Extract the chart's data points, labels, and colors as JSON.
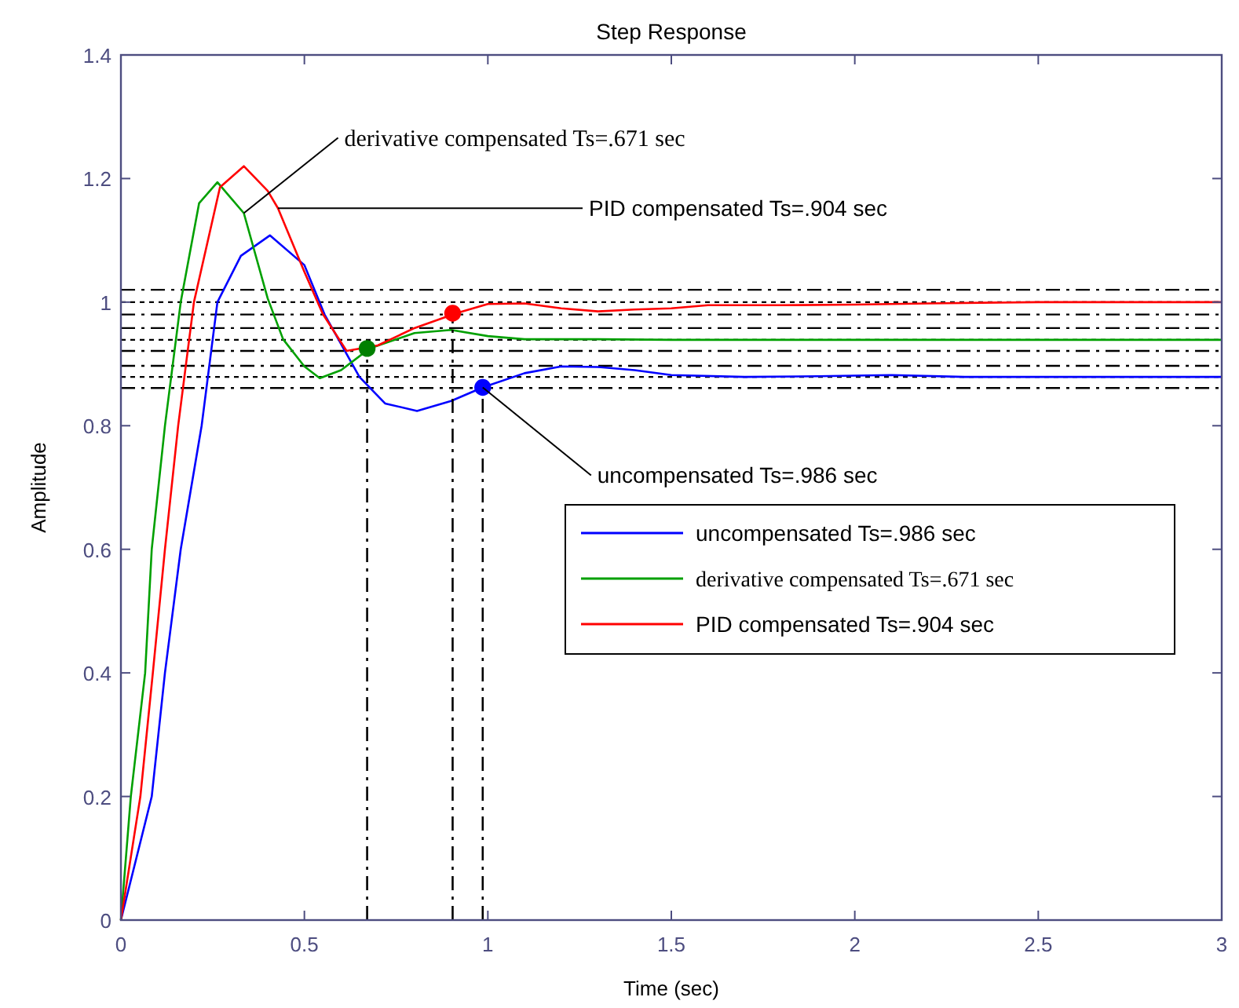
{
  "chart_data": {
    "type": "line",
    "title": "Step Response",
    "xlabel": "Time (sec)",
    "ylabel": "Amplitude",
    "xlim": [
      0,
      3
    ],
    "ylim": [
      0,
      1.4
    ],
    "xticks": [
      0,
      0.5,
      1,
      1.5,
      2,
      2.5,
      3
    ],
    "yticks": [
      0,
      0.2,
      0.4,
      0.6,
      0.8,
      1,
      1.2,
      1.4
    ],
    "grid": false,
    "legend": "right",
    "series": [
      {
        "name": "uncompensated Ts=.986 sec",
        "color": "#0000ff",
        "marker": "none",
        "line_style": "solid",
        "x": [
          0,
          0.084,
          0.12,
          0.163,
          0.22,
          0.263,
          0.327,
          0.406,
          0.5,
          0.555,
          0.65,
          0.72,
          0.807,
          0.9,
          0.986,
          1.1,
          1.2,
          1.3,
          1.4,
          1.5,
          1.7,
          1.9,
          2.1,
          2.3,
          2.5,
          3
        ],
        "values": [
          0,
          0.2,
          0.4,
          0.6,
          0.8,
          1,
          1.075,
          1.108,
          1.06,
          0.98,
          0.879,
          0.836,
          0.824,
          0.84,
          0.862,
          0.885,
          0.896,
          0.895,
          0.89,
          0.882,
          0.879,
          0.88,
          0.882,
          0.879,
          0.879,
          0.879
        ]
      },
      {
        "name": "derivative compensated Ts=.671 sec",
        "color": "#00a000",
        "marker": "none",
        "line_style": "solid",
        "x": [
          0,
          0.027,
          0.066,
          0.084,
          0.12,
          0.163,
          0.213,
          0.263,
          0.335,
          0.4,
          0.442,
          0.5,
          0.542,
          0.6,
          0.678,
          0.8,
          0.9,
          1,
          1.1,
          1.3,
          1.5,
          1.8,
          2,
          2.5,
          3
        ],
        "values": [
          0,
          0.2,
          0.4,
          0.6,
          0.8,
          1,
          1.16,
          1.194,
          1.144,
          1.006,
          0.94,
          0.896,
          0.877,
          0.89,
          0.925,
          0.95,
          0.955,
          0.945,
          0.94,
          0.94,
          0.939,
          0.939,
          0.939,
          0.939,
          0.939
        ]
      },
      {
        "name": "PID compensated Ts=.904 sec",
        "color": "#ff0000",
        "marker": "none",
        "line_style": "solid",
        "x": [
          0,
          0.053,
          0.087,
          0.12,
          0.156,
          0.199,
          0.27,
          0.335,
          0.4,
          0.428,
          0.5,
          0.55,
          0.615,
          0.7,
          0.8,
          0.914,
          1,
          1.1,
          1.2,
          1.3,
          1.4,
          1.5,
          1.6,
          1.8,
          2,
          2.2,
          2.5,
          3
        ],
        "values": [
          0,
          0.2,
          0.4,
          0.6,
          0.8,
          1,
          1.186,
          1.22,
          1.18,
          1.152,
          1.049,
          0.981,
          0.921,
          0.93,
          0.958,
          0.982,
          0.997,
          0.998,
          0.99,
          0.985,
          0.988,
          0.99,
          0.995,
          0.995,
          0.996,
          0.998,
          1,
          1
        ]
      },
      {
        "type": "scatter",
        "color": "#0000ff",
        "marker": "circle",
        "x": [
          0.986
        ],
        "values": [
          0.862
        ]
      },
      {
        "type": "scatter",
        "color": "#008000",
        "marker": "circle",
        "x": [
          0.671
        ],
        "values": [
          0.925
        ]
      },
      {
        "type": "scatter",
        "color": "#ff0000",
        "marker": "circle",
        "x": [
          0.904
        ],
        "values": [
          0.982
        ]
      },
      {
        "color": "#000000",
        "marker": "none",
        "line_style": "dashed",
        "x": [
          0.671,
          0.671
        ],
        "values": [
          0,
          0.925
        ]
      },
      {
        "color": "#000000",
        "marker": "none",
        "line_style": "dashed",
        "x": [
          0.904,
          0.904
        ],
        "values": [
          0,
          0.982
        ]
      },
      {
        "color": "#000000",
        "marker": "none",
        "line_style": "dashed",
        "x": [
          0.986,
          0.986
        ],
        "values": [
          0,
          0.862
        ]
      }
    ],
    "ref_lines": [
      {
        "axis": "y",
        "value": 1.02,
        "color": "#000000",
        "line_style": "dashed"
      },
      {
        "axis": "y",
        "value": 1,
        "color": "#000000",
        "line_style": "dotted"
      },
      {
        "axis": "y",
        "value": 0.98,
        "color": "#000000",
        "line_style": "dashed"
      },
      {
        "axis": "y",
        "value": 0.958,
        "color": "#000000",
        "line_style": "dashed"
      },
      {
        "axis": "y",
        "value": 0.939,
        "color": "#000000",
        "line_style": "dotted"
      },
      {
        "axis": "y",
        "value": 0.921,
        "color": "#000000",
        "line_style": "dashed"
      },
      {
        "axis": "y",
        "value": 0.897,
        "color": "#000000",
        "line_style": "dashed"
      },
      {
        "axis": "y",
        "value": 0.879,
        "color": "#000000",
        "line_style": "dotted"
      },
      {
        "axis": "y",
        "value": 0.861,
        "color": "#000000",
        "line_style": "dashed"
      }
    ],
    "annotations": [
      {
        "text": "derivative compensated Ts=.671 sec",
        "x": 0.335,
        "y": 1.144
      },
      {
        "text": "PID compensated Ts=.904 sec",
        "x": 0.428,
        "y": 1.152
      },
      {
        "text": "uncompensated Ts=.986 sec",
        "x": 0.986,
        "y": 0.862
      }
    ]
  }
}
